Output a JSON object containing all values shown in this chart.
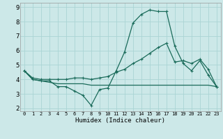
{
  "xlabel": "Humidex (Indice chaleur)",
  "background_color": "#cce8e8",
  "grid_color": "#aad4d4",
  "line_color": "#1a6b5a",
  "xlim": [
    -0.5,
    23.5
  ],
  "ylim": [
    1.8,
    9.3
  ],
  "x": [
    0,
    1,
    2,
    3,
    4,
    5,
    6,
    7,
    8,
    9,
    10,
    11,
    12,
    13,
    14,
    15,
    16,
    17,
    18,
    19,
    20,
    21,
    22,
    23
  ],
  "line1": [
    4.6,
    4.0,
    3.9,
    3.9,
    3.5,
    3.5,
    3.2,
    2.9,
    2.2,
    3.3,
    3.4,
    4.6,
    5.9,
    7.9,
    8.5,
    8.8,
    8.7,
    8.7,
    6.3,
    5.1,
    4.6,
    5.3,
    4.3,
    3.5
  ],
  "line2": [
    4.6,
    4.1,
    4.0,
    4.0,
    4.0,
    4.0,
    4.1,
    4.1,
    4.0,
    4.1,
    4.2,
    4.5,
    4.7,
    5.1,
    5.4,
    5.8,
    6.2,
    6.5,
    5.2,
    5.3,
    5.1,
    5.4,
    4.7,
    3.5
  ],
  "line3": [
    4.6,
    4.0,
    3.9,
    3.8,
    3.7,
    3.7,
    3.7,
    3.7,
    3.6,
    3.6,
    3.6,
    3.6,
    3.6,
    3.6,
    3.6,
    3.6,
    3.6,
    3.6,
    3.6,
    3.6,
    3.6,
    3.6,
    3.6,
    3.5
  ],
  "yticks": [
    2,
    3,
    4,
    5,
    6,
    7,
    8,
    9
  ],
  "xticks": [
    0,
    1,
    2,
    3,
    4,
    5,
    6,
    7,
    8,
    9,
    10,
    11,
    12,
    13,
    14,
    15,
    16,
    17,
    18,
    19,
    20,
    21,
    22,
    23
  ],
  "xtick_labels": [
    "0",
    "1",
    "2",
    "3",
    "4",
    "5",
    "6",
    "7",
    "8",
    "9",
    "10",
    "11",
    "12",
    "13",
    "14",
    "15",
    "16",
    "17",
    "18",
    "19",
    "20",
    "21",
    "22",
    "23"
  ],
  "linewidth": 0.9,
  "markersize": 3.5
}
